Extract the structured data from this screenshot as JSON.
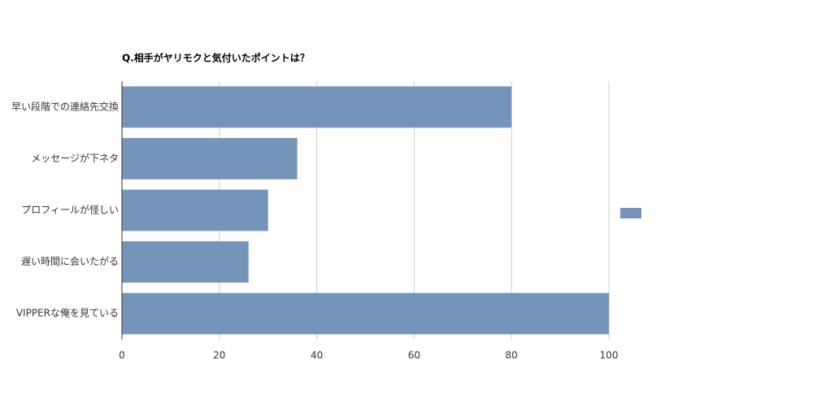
{
  "chart_data": {
    "type": "hbar",
    "title": "Q.相手がヤリモクと気付いたポイントは？",
    "categories": [
      "早い段階での連絡先交換",
      "メッセージが下ネタ",
      "プロフィールが怪しい",
      "遅い時間に会いたがる",
      "VIPPERな俺を見ている"
    ],
    "values": [
      80,
      36,
      30,
      26,
      100
    ],
    "color": "#7594b9",
    "xlim": [
      0,
      100
    ],
    "xticks": [
      0,
      20,
      40,
      60,
      80,
      100
    ],
    "grid": true
  }
}
